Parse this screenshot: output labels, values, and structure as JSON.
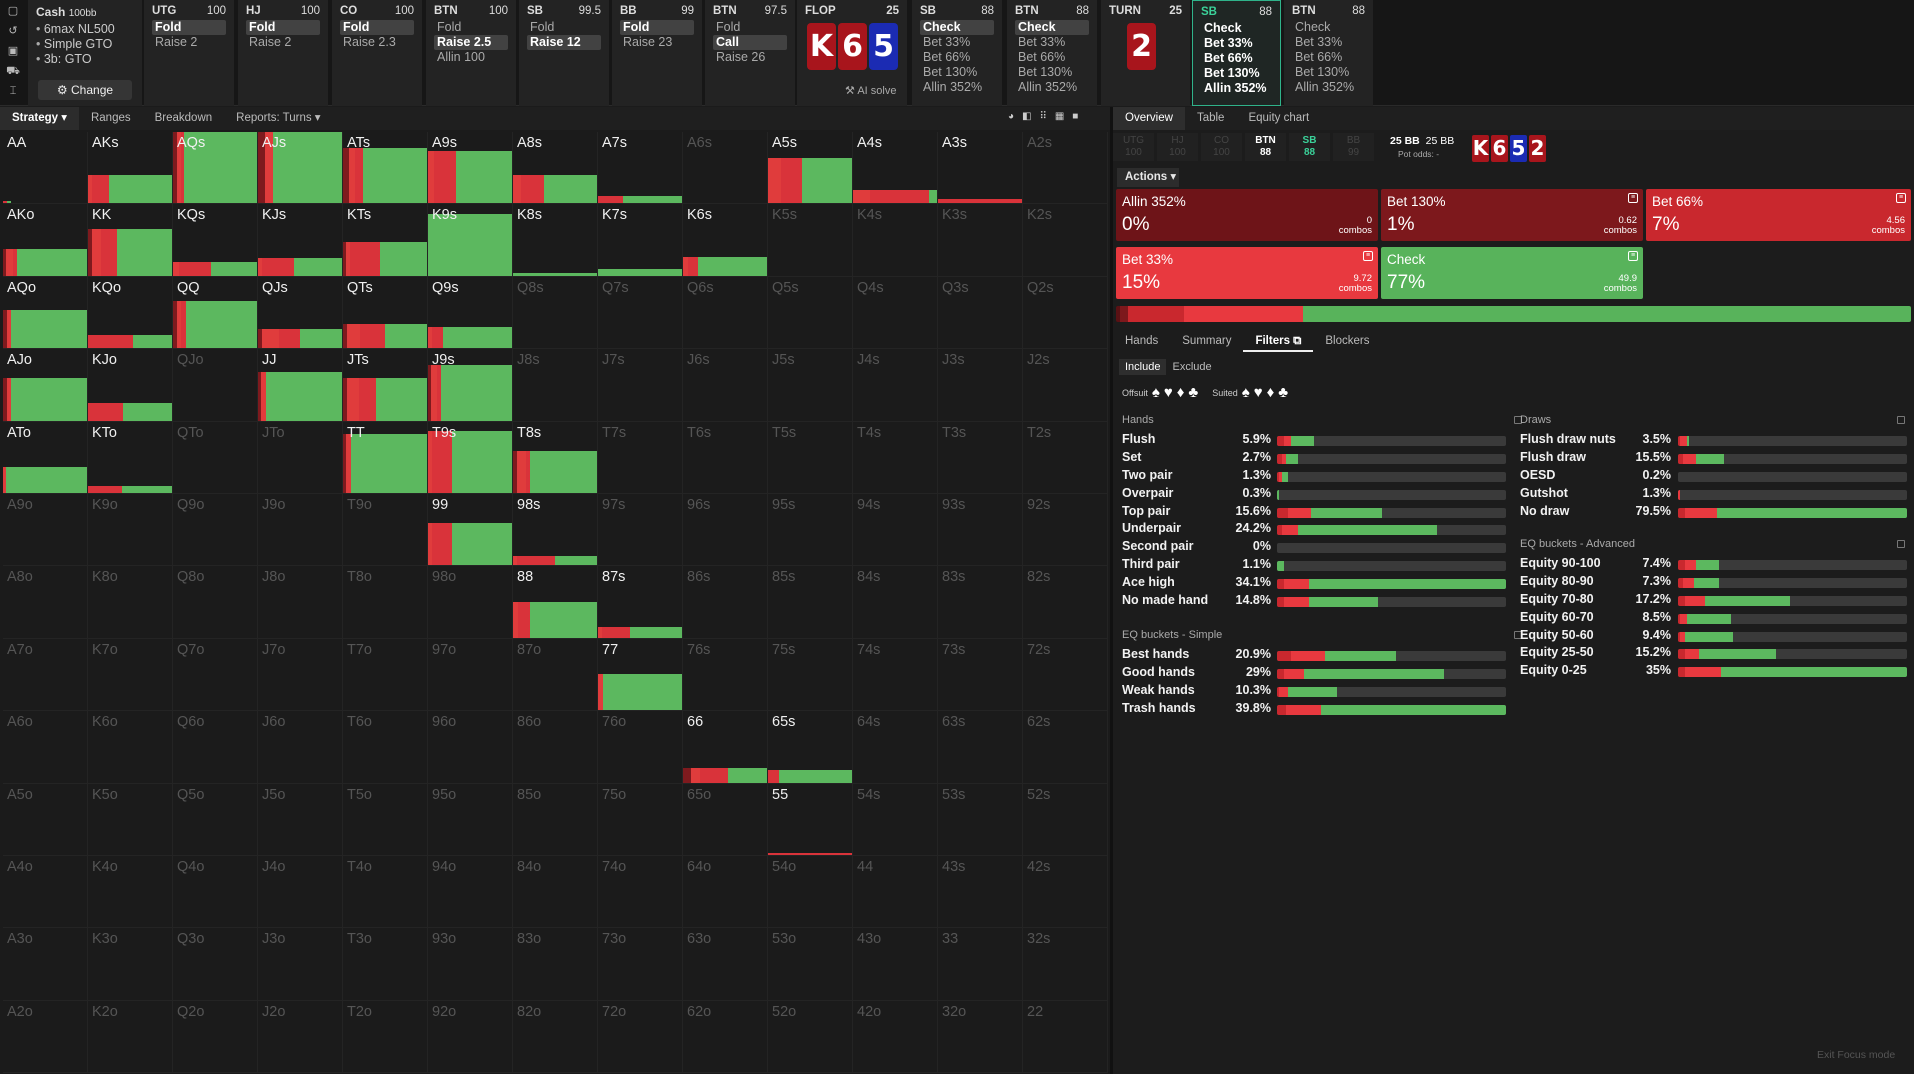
{
  "sidebar": {
    "icons": [
      "square-icon",
      "history-icon",
      "save-icon",
      "car-icon",
      "text-cursor-icon"
    ]
  },
  "cash": {
    "title": "Cash",
    "stakes": "100bb",
    "items": [
      "6max NL500",
      "Simple GTO",
      "3b: GTO"
    ],
    "change_label": "⚙ Change"
  },
  "actions": [
    {
      "pos": "UTG",
      "stack": "100",
      "options": [
        "Fold",
        "Raise 2"
      ],
      "selected": 0
    },
    {
      "pos": "HJ",
      "stack": "100",
      "options": [
        "Fold",
        "Raise 2"
      ],
      "selected": 0
    },
    {
      "pos": "CO",
      "stack": "100",
      "options": [
        "Fold",
        "Raise 2.3"
      ],
      "selected": 0
    },
    {
      "pos": "BTN",
      "stack": "100",
      "options": [
        "Fold",
        "Raise 2.5",
        "Allin 100"
      ],
      "selected": 1
    },
    {
      "pos": "SB",
      "stack": "99.5",
      "options": [
        "Fold",
        "Raise 12"
      ],
      "selected": 1
    },
    {
      "pos": "BB",
      "stack": "99",
      "options": [
        "Fold",
        "Raise 23"
      ],
      "selected": 0
    },
    {
      "pos": "BTN",
      "stack": "97.5",
      "options": [
        "Fold",
        "Call",
        "Raise 26"
      ],
      "selected": 1
    }
  ],
  "flop": {
    "label": "FLOP",
    "pot": "25",
    "cards": [
      "K",
      "6",
      "5"
    ],
    "ai_solve": "AI solve"
  },
  "postflop": [
    {
      "pos": "SB",
      "stack": "88",
      "options": [
        "Check",
        "Bet 33%",
        "Bet 66%",
        "Bet 130%",
        "Allin 352%"
      ],
      "selected": 0
    },
    {
      "pos": "BTN",
      "stack": "88",
      "options": [
        "Check",
        "Bet 33%",
        "Bet 66%",
        "Bet 130%",
        "Allin 352%"
      ],
      "selected": 0
    }
  ],
  "turn": {
    "label": "TURN",
    "pot": "25",
    "card": "2"
  },
  "current": {
    "pos": "SB",
    "stack": "88",
    "options": [
      "Check",
      "Bet 33%",
      "Bet 66%",
      "Bet 130%",
      "Allin 352%"
    ]
  },
  "next": {
    "pos": "BTN",
    "stack": "88",
    "options": [
      "Check",
      "Bet 33%",
      "Bet 66%",
      "Bet 130%",
      "Allin 352%"
    ]
  },
  "toolbar": {
    "strategy": "Strategy ▾",
    "ranges": "Ranges",
    "breakdown": "Breakdown",
    "reports": "Reports: Turns ▾"
  },
  "right_tabs": {
    "overview": "Overview",
    "table": "Table",
    "equity": "Equity chart"
  },
  "seats": [
    {
      "pos": "UTG",
      "stack": "100"
    },
    {
      "pos": "HJ",
      "stack": "100"
    },
    {
      "pos": "CO",
      "stack": "100"
    },
    {
      "pos": "BTN",
      "stack": "88"
    },
    {
      "pos": "SB",
      "stack": "88"
    },
    {
      "pos": "BB",
      "stack": "99"
    }
  ],
  "pot_info": {
    "pot": "25 BB",
    "bb": "25 BB",
    "odds": "Pot odds: -"
  },
  "board": [
    "K",
    "6",
    "5",
    "2"
  ],
  "actions_label": "Actions ▾",
  "action_boxes": [
    {
      "name": "Allin 352%",
      "pct": "0%",
      "combos": "0",
      "unit": "combos"
    },
    {
      "name": "Bet 130%",
      "pct": "1%",
      "combos": "0.62",
      "unit": "combos"
    },
    {
      "name": "Bet 66%",
      "pct": "7%",
      "combos": "4.56",
      "unit": "combos"
    },
    {
      "name": "Bet 33%",
      "pct": "15%",
      "combos": "9.72",
      "unit": "combos"
    },
    {
      "name": "Check",
      "pct": "77%",
      "combos": "49.9",
      "unit": "combos"
    }
  ],
  "freq": [
    0.5,
    1,
    7,
    15,
    76.5
  ],
  "sub_tabs": {
    "hands": "Hands",
    "summary": "Summary",
    "filters": "Filters",
    "blockers": "Blockers"
  },
  "filter_mode": {
    "include": "Include",
    "exclude": "Exclude"
  },
  "suit_labels": {
    "offsuit": "Offsuit",
    "suited": "Suited"
  },
  "hands_section": {
    "title": "Hands",
    "rows": [
      {
        "name": "Flush",
        "pct": "5.9%",
        "f": [
          0,
          3,
          3,
          10
        ]
      },
      {
        "name": "Set",
        "pct": "2.7%",
        "f": [
          0,
          2,
          2,
          5
        ]
      },
      {
        "name": "Two pair",
        "pct": "1.3%",
        "f": [
          0,
          1,
          1,
          3
        ]
      },
      {
        "name": "Overpair",
        "pct": "0.3%",
        "f": [
          0,
          0,
          0,
          1
        ]
      },
      {
        "name": "Top pair",
        "pct": "15.6%",
        "f": [
          0,
          5,
          10,
          31
        ]
      },
      {
        "name": "Underpair",
        "pct": "24.2%",
        "f": [
          0,
          2,
          7,
          61
        ]
      },
      {
        "name": "Second pair",
        "pct": "0%",
        "f": [
          0,
          0,
          0,
          0
        ]
      },
      {
        "name": "Third pair",
        "pct": "1.1%",
        "f": [
          0,
          0,
          0,
          3
        ]
      },
      {
        "name": "Ace high",
        "pct": "34.1%",
        "f": [
          0,
          3,
          11,
          86
        ]
      },
      {
        "name": "No made hand",
        "pct": "14.8%",
        "f": [
          0,
          3,
          11,
          30
        ]
      }
    ]
  },
  "eq_simple": {
    "title": "EQ buckets - Simple",
    "rows": [
      {
        "name": "Best hands",
        "pct": "20.9%",
        "f": [
          0,
          6,
          15,
          31
        ]
      },
      {
        "name": "Good hands",
        "pct": "29%",
        "f": [
          0,
          3,
          9,
          61
        ]
      },
      {
        "name": "Weak hands",
        "pct": "10.3%",
        "f": [
          0,
          1,
          4,
          21
        ]
      },
      {
        "name": "Trash hands",
        "pct": "39.8%",
        "f": [
          0,
          4,
          15,
          81
        ]
      }
    ]
  },
  "draws_section": {
    "title": "Draws",
    "rows": [
      {
        "name": "Flush draw nuts",
        "pct": "3.5%",
        "f": [
          0,
          1,
          3,
          1
        ]
      },
      {
        "name": "Flush draw",
        "pct": "15.5%",
        "f": [
          0,
          2,
          6,
          12
        ]
      },
      {
        "name": "OESD",
        "pct": "0.2%",
        "f": [
          0,
          0,
          0,
          0
        ]
      },
      {
        "name": "Gutshot",
        "pct": "1.3%",
        "f": [
          0,
          0,
          1,
          0
        ]
      },
      {
        "name": "No draw",
        "pct": "79.5%",
        "f": [
          0,
          3,
          14,
          83
        ]
      }
    ]
  },
  "eq_adv": {
    "title": "EQ buckets - Advanced",
    "rows": [
      {
        "name": "Equity 90-100",
        "pct": "7.4%",
        "f": [
          0,
          3,
          5,
          10
        ]
      },
      {
        "name": "Equity 80-90",
        "pct": "7.3%",
        "f": [
          0,
          2,
          5,
          11
        ]
      },
      {
        "name": "Equity 70-80",
        "pct": "17.2%",
        "f": [
          0,
          3,
          9,
          37
        ]
      },
      {
        "name": "Equity 60-70",
        "pct": "8.5%",
        "f": [
          0,
          1,
          3,
          19
        ]
      },
      {
        "name": "Equity 50-60",
        "pct": "9.4%",
        "f": [
          0,
          1,
          2,
          21
        ]
      },
      {
        "name": "Equity 25-50",
        "pct": "15.2%",
        "f": [
          0,
          3,
          6,
          34
        ]
      },
      {
        "name": "Equity 0-25",
        "pct": "35%",
        "f": [
          0,
          3,
          16,
          81
        ]
      }
    ]
  },
  "exit_focus": "Exit Focus mode",
  "ranks": [
    "A",
    "K",
    "Q",
    "J",
    "T",
    "9",
    "8",
    "7",
    "6",
    "5",
    "4",
    "3",
    "2"
  ],
  "matrix": {
    "AA": [
      0.04,
      [
        0,
        0,
        0.05,
        0.04
      ]
    ],
    "AKs": [
      0.4,
      [
        0,
        0.05,
        0.2,
        0.75
      ]
    ],
    "AQs": [
      1,
      [
        0.05,
        0.05,
        0.03,
        0.87
      ]
    ],
    "AJs": [
      1,
      [
        0.08,
        0.1,
        0,
        0.82
      ]
    ],
    "ATs": [
      0.78,
      [
        0.07,
        0.07,
        0.1,
        0.76
      ]
    ],
    "A9s": [
      0.73,
      [
        0,
        0.07,
        0.26,
        0.67
      ]
    ],
    "A8s": [
      0.4,
      [
        0,
        0.1,
        0.27,
        0.63
      ]
    ],
    "A7s": [
      0.1,
      [
        0,
        0,
        0.3,
        0.7
      ]
    ],
    "A5s": [
      0.63,
      [
        0,
        0.15,
        0.25,
        0.6
      ]
    ],
    "A4s": [
      0.19,
      [
        0,
        0.2,
        0.7,
        0.1
      ]
    ],
    "A3s": [
      0.06,
      [
        0,
        0,
        1,
        0
      ]
    ],
    "AKo": [
      0.38,
      [
        0.04,
        0.08,
        0.05,
        0.83
      ]
    ],
    "KK": [
      0.65,
      [
        0.05,
        0.1,
        0.2,
        0.65
      ]
    ],
    "KQs": [
      0.2,
      [
        0,
        0.07,
        0.38,
        0.55
      ]
    ],
    "KJs": [
      0.25,
      [
        0,
        0.05,
        0.38,
        0.57
      ]
    ],
    "KTs": [
      0.47,
      [
        0.03,
        0.05,
        0.36,
        0.56
      ]
    ],
    "K9s": [
      0.86,
      [
        0,
        0,
        0,
        1
      ]
    ],
    "K8s": [
      0.04,
      [
        0,
        0,
        0,
        1
      ]
    ],
    "K7s": [
      0.09,
      [
        0,
        0,
        0,
        1
      ]
    ],
    "K6s": [
      0.26,
      [
        0,
        0.06,
        0.12,
        0.82
      ]
    ],
    "AQo": [
      0.53,
      [
        0.05,
        0.04,
        0,
        0.91
      ]
    ],
    "KQo": [
      0.18,
      [
        0,
        0,
        0.53,
        0.47
      ]
    ],
    "QQ": [
      0.66,
      [
        0.05,
        0.05,
        0.05,
        0.85
      ]
    ],
    "QJs": [
      0.27,
      [
        0.05,
        0.2,
        0.25,
        0.5
      ]
    ],
    "QTs": [
      0.34,
      [
        0.05,
        0.15,
        0.3,
        0.5
      ]
    ],
    "Q9s": [
      0.29,
      [
        0,
        0.05,
        0.13,
        0.82
      ]
    ],
    "AJo": [
      0.6,
      [
        0.05,
        0.05,
        0,
        0.9
      ]
    ],
    "KJo": [
      0.24,
      [
        0,
        0,
        0.42,
        0.58
      ]
    ],
    "JJ": [
      0.68,
      [
        0.03,
        0.06,
        0,
        0.91
      ]
    ],
    "JTs": [
      0.6,
      [
        0.05,
        0.14,
        0.2,
        0.61
      ]
    ],
    "J9s": [
      0.78,
      [
        0.04,
        0.07,
        0.04,
        0.85
      ]
    ],
    "ATo": [
      0.37,
      [
        0,
        0.03,
        0,
        0.97
      ]
    ],
    "KTo": [
      0.1,
      [
        0,
        0,
        0.41,
        0.59
      ]
    ],
    "TT": [
      0.82,
      [
        0.03,
        0.06,
        0,
        0.91
      ]
    ],
    "T9s": [
      0.87,
      [
        0,
        0.05,
        0.23,
        0.72
      ]
    ],
    "T8s": [
      0.59,
      [
        0.05,
        0.1,
        0.05,
        0.8
      ]
    ],
    "99": [
      0.6,
      [
        0,
        0.05,
        0.23,
        0.72
      ]
    ],
    "98s": [
      0.13,
      [
        0,
        0.05,
        0.45,
        0.5
      ]
    ],
    "88": [
      0.5,
      [
        0,
        0.06,
        0.14,
        0.8
      ]
    ],
    "87s": [
      0.15,
      [
        0,
        0.05,
        0.33,
        0.62
      ]
    ],
    "77": [
      0.5,
      [
        0,
        0.06,
        0,
        0.94
      ]
    ],
    "66": [
      0.21,
      [
        0.1,
        0.1,
        0.33,
        0.47
      ]
    ],
    "65s": [
      0.17,
      [
        0,
        0,
        0.13,
        0.87
      ]
    ],
    "55": [
      0.02,
      [
        0,
        0,
        1,
        0
      ]
    ]
  }
}
